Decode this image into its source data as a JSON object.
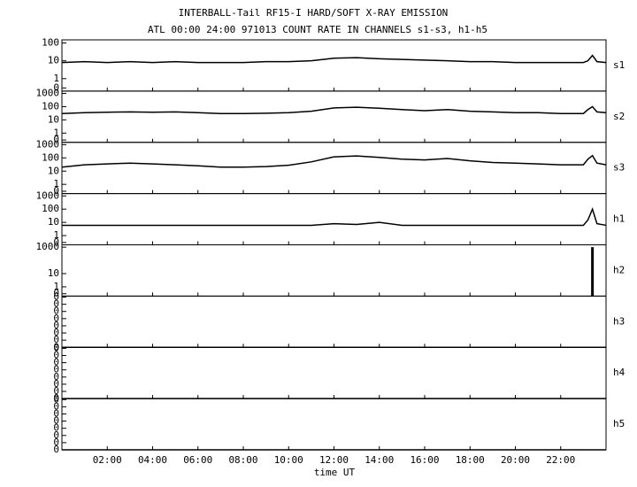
{
  "chart_data": {
    "title": "INTERBALL-Tail RF15-I HARD/SOFT X-RAY EMISSION",
    "subtitle": "ATL 00:00 24:00 971013  COUNT RATE IN CHANNELS s1-s3, h1-h5",
    "x_label": "time UT",
    "x": [
      0,
      1,
      2,
      3,
      4,
      5,
      6,
      7,
      8,
      9,
      10,
      11,
      12,
      13,
      14,
      15,
      16,
      17,
      18,
      19,
      20,
      21,
      22,
      23,
      23.2,
      23.4,
      23.6,
      24
    ],
    "xlim": [
      0,
      24
    ],
    "xticks": [
      {
        "value": 2,
        "label": "02:00"
      },
      {
        "value": 4,
        "label": "04:00"
      },
      {
        "value": 6,
        "label": "06:00"
      },
      {
        "value": 8,
        "label": "08:00"
      },
      {
        "value": 10,
        "label": "10:00"
      },
      {
        "value": 12,
        "label": "12:00"
      },
      {
        "value": 14,
        "label": "14:00"
      },
      {
        "value": 16,
        "label": "16:00"
      },
      {
        "value": 18,
        "label": "18:00"
      },
      {
        "value": 20,
        "label": "20:00"
      },
      {
        "value": 22,
        "label": "22:00"
      }
    ],
    "color": "#000000",
    "panels": [
      {
        "type": "line",
        "name": "s1",
        "log": true,
        "ylim": [
          0.2,
          150
        ],
        "yticks": [
          100,
          10,
          1,
          {
            "value": 0.3,
            "label": "0"
          }
        ],
        "values": [
          8,
          9,
          8,
          9,
          8,
          9,
          8,
          8,
          8,
          9,
          9,
          10,
          14,
          15,
          13,
          12,
          11,
          10,
          9,
          9,
          8,
          8,
          8,
          8,
          10,
          20,
          9,
          8
        ]
      },
      {
        "type": "line",
        "name": "s2",
        "log": true,
        "ylim": [
          0.2,
          1500
        ],
        "yticks": [
          1000,
          100,
          10,
          1,
          {
            "value": 0.3,
            "label": "0"
          }
        ],
        "values": [
          30,
          35,
          38,
          40,
          38,
          40,
          35,
          30,
          30,
          32,
          35,
          45,
          80,
          90,
          75,
          60,
          50,
          60,
          45,
          40,
          35,
          35,
          30,
          30,
          60,
          100,
          40,
          35
        ]
      },
      {
        "type": "line",
        "name": "s3",
        "log": true,
        "ylim": [
          0.2,
          1500
        ],
        "yticks": [
          1000,
          100,
          10,
          1,
          {
            "value": 0.3,
            "label": "0"
          }
        ],
        "values": [
          20,
          30,
          35,
          40,
          35,
          30,
          25,
          20,
          20,
          22,
          28,
          50,
          120,
          140,
          110,
          80,
          70,
          90,
          60,
          45,
          40,
          35,
          30,
          30,
          80,
          150,
          40,
          30
        ]
      },
      {
        "type": "line",
        "name": "h1",
        "log": true,
        "ylim": [
          0.2,
          1500
        ],
        "yticks": [
          1000,
          100,
          10,
          1,
          {
            "value": 0.3,
            "label": "0"
          }
        ],
        "values": [
          6,
          6,
          6,
          6,
          6,
          6,
          6,
          6,
          6,
          6,
          6,
          6,
          8,
          7,
          10,
          6,
          6,
          6,
          6,
          6,
          6,
          6,
          6,
          6,
          15,
          100,
          8,
          6
        ]
      },
      {
        "type": "bar",
        "name": "h2",
        "log": true,
        "ylim": [
          0.2,
          1500
        ],
        "yticks": [
          1000,
          10,
          1,
          {
            "value": 0.3,
            "label": "0"
          }
        ],
        "values": [
          null,
          null,
          null,
          null,
          null,
          null,
          null,
          null,
          null,
          null,
          null,
          null,
          null,
          null,
          null,
          null,
          null,
          null,
          null,
          null,
          null,
          null,
          null,
          null,
          null,
          1000,
          null,
          null
        ]
      },
      {
        "type": "line",
        "name": "h3",
        "log": false,
        "ylim": [
          0,
          1
        ],
        "yticks": [
          0,
          {
            "value": 0.14,
            "label": "0"
          },
          {
            "value": 0.28,
            "label": "0"
          },
          {
            "value": 0.42,
            "label": "0"
          },
          {
            "value": 0.56,
            "label": "0"
          },
          {
            "value": 0.7,
            "label": "0"
          },
          {
            "value": 0.84,
            "label": "0"
          },
          {
            "value": 0.98,
            "label": "0"
          }
        ],
        "values": [
          0,
          0,
          0,
          0,
          0,
          0,
          0,
          0,
          0,
          0,
          0,
          0,
          0,
          0,
          0,
          0,
          0,
          0,
          0,
          0,
          0,
          0,
          0,
          0,
          0,
          0,
          0,
          0
        ]
      },
      {
        "type": "line",
        "name": "h4",
        "log": false,
        "ylim": [
          0,
          1
        ],
        "yticks": [
          0,
          {
            "value": 0.14,
            "label": "0"
          },
          {
            "value": 0.28,
            "label": "0"
          },
          {
            "value": 0.42,
            "label": "0"
          },
          {
            "value": 0.56,
            "label": "0"
          },
          {
            "value": 0.7,
            "label": "0"
          },
          {
            "value": 0.84,
            "label": "0"
          },
          {
            "value": 0.98,
            "label": "0"
          }
        ],
        "values": [
          0,
          0,
          0,
          0,
          0,
          0,
          0,
          0,
          0,
          0,
          0,
          0,
          0,
          0,
          0,
          0,
          0,
          0,
          0,
          0,
          0,
          0,
          0,
          0,
          0,
          0,
          0,
          0
        ]
      },
      {
        "type": "line",
        "name": "h5",
        "log": false,
        "ylim": [
          0,
          1
        ],
        "yticks": [
          0,
          {
            "value": 0.14,
            "label": "0"
          },
          {
            "value": 0.28,
            "label": "0"
          },
          {
            "value": 0.42,
            "label": "0"
          },
          {
            "value": 0.56,
            "label": "0"
          },
          {
            "value": 0.7,
            "label": "0"
          },
          {
            "value": 0.84,
            "label": "0"
          },
          {
            "value": 0.98,
            "label": "0"
          }
        ],
        "values": [
          0,
          0,
          0,
          0,
          0,
          0,
          0,
          0,
          0,
          0,
          0,
          0,
          0,
          0,
          0,
          0,
          0,
          0,
          0,
          0,
          0,
          0,
          0,
          0,
          0,
          0,
          0,
          0
        ]
      }
    ]
  }
}
